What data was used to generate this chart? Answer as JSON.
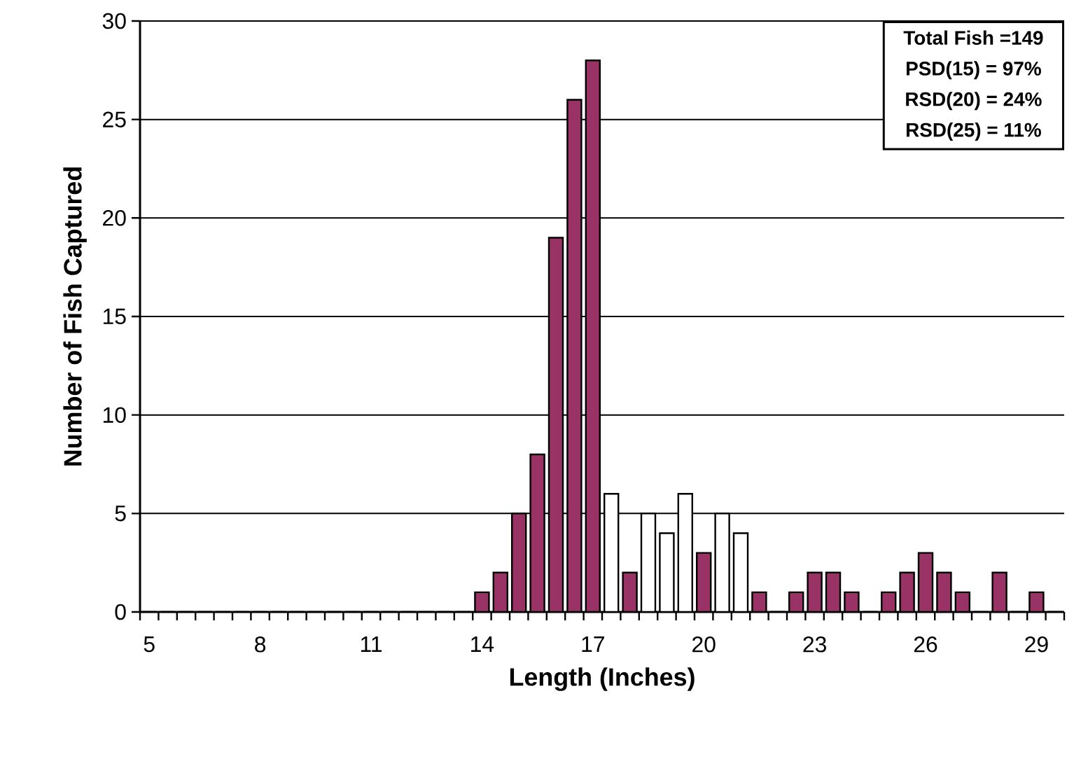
{
  "chart_data": {
    "type": "bar",
    "xlabel": "Length (Inches)",
    "ylabel": "Number of Fish Captured",
    "categories": [
      "5",
      null,
      null,
      null,
      null,
      null,
      "8",
      null,
      null,
      null,
      null,
      null,
      "11",
      null,
      null,
      null,
      null,
      null,
      "14",
      null,
      null,
      null,
      null,
      null,
      "17",
      null,
      null,
      null,
      null,
      null,
      "20",
      null,
      null,
      null,
      null,
      null,
      "23",
      null,
      null,
      null,
      null,
      null,
      "26",
      null,
      null,
      null,
      null,
      null,
      "29",
      null
    ],
    "values": [
      0,
      0,
      0,
      0,
      0,
      0,
      0,
      0,
      0,
      0,
      0,
      0,
      0,
      0,
      0,
      0,
      0,
      0,
      1,
      2,
      5,
      8,
      19,
      26,
      28,
      6,
      2,
      5,
      4,
      6,
      3,
      5,
      4,
      1,
      0,
      1,
      2,
      2,
      1,
      0,
      1,
      2,
      3,
      2,
      1,
      0,
      2,
      0,
      1,
      0
    ],
    "colors": [
      "#993366",
      "#993366",
      "#993366",
      "#993366",
      "#993366",
      "#993366",
      "#993366",
      "#993366",
      "#993366",
      "#993366",
      "#993366",
      "#993366",
      "#993366",
      "#993366",
      "#993366",
      "#993366",
      "#993366",
      "#993366",
      "#993366",
      "#993366",
      "#993366",
      "#993366",
      "#993366",
      "#993366",
      "#993366",
      "#ffffff",
      "#993366",
      "#ffffff",
      "#ffffff",
      "#ffffff",
      "#993366",
      "#ffffff",
      "#ffffff",
      "#993366",
      "#993366",
      "#993366",
      "#993366",
      "#993366",
      "#993366",
      "#993366",
      "#993366",
      "#993366",
      "#993366",
      "#993366",
      "#993366",
      "#993366",
      "#993366",
      "#993366",
      "#993366",
      "#993366"
    ],
    "ylim": [
      0,
      30
    ],
    "yticks": [
      0,
      5,
      10,
      15,
      20,
      25,
      30
    ],
    "grid": "y",
    "annotations": [
      "Total Fish =149",
      "PSD(15) = 97%",
      "RSD(20) = 24%",
      "RSD(25) = 11%"
    ]
  }
}
